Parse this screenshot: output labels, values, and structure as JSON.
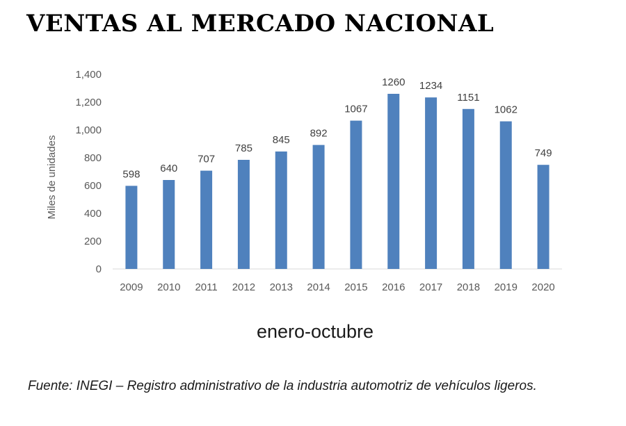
{
  "title": "VENTAS AL MERCADO NACIONAL",
  "subtitle": "enero-octubre",
  "source": "Fuente: INEGI – Registro administrativo de la industria automotriz de vehículos ligeros.",
  "colors": {
    "bar": "#4f81bd",
    "axis": "#d9d9d9"
  },
  "chart_data": {
    "type": "bar",
    "title": "VENTAS AL MERCADO NACIONAL",
    "xlabel": "enero-octubre",
    "ylabel": "Miles de unidades",
    "categories": [
      "2009",
      "2010",
      "2011",
      "2012",
      "2013",
      "2014",
      "2015",
      "2016",
      "2017",
      "2018",
      "2019",
      "2020"
    ],
    "values": [
      598,
      640,
      707,
      785,
      845,
      892,
      1067,
      1260,
      1234,
      1151,
      1062,
      749
    ],
    "data_labels": [
      "598",
      "640",
      "707",
      "785",
      "845",
      "892",
      "1067",
      "1260",
      "1234",
      "1151",
      "1062",
      "749"
    ],
    "ylim": [
      0,
      1400
    ],
    "yticks": [
      0,
      200,
      400,
      600,
      800,
      1000,
      1200,
      1400
    ],
    "ytick_labels": [
      "0",
      "200",
      "400",
      "600",
      "800",
      "1,000",
      "1,200",
      "1,400"
    ],
    "grid": false,
    "legend": "none"
  }
}
